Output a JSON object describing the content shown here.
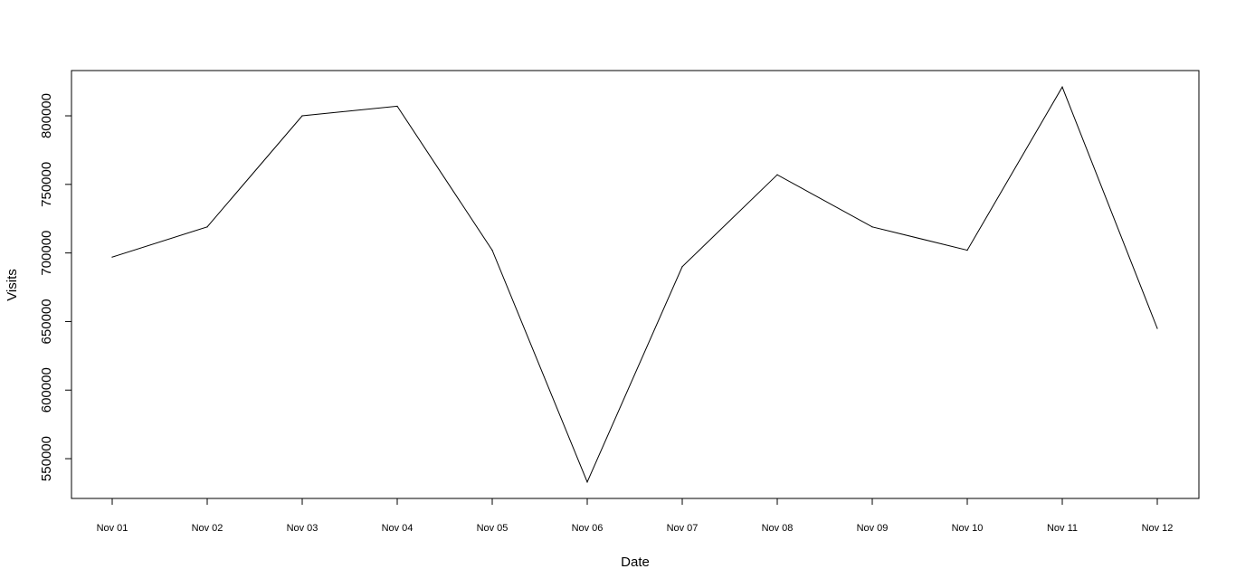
{
  "chart_data": {
    "type": "line",
    "title": "",
    "xlabel": "Date",
    "ylabel": "Visits",
    "x": [
      "Nov 01",
      "Nov 02",
      "Nov 03",
      "Nov 04",
      "Nov 05",
      "Nov 06",
      "Nov 07",
      "Nov 08",
      "Nov 09",
      "Nov 10",
      "Nov 11",
      "Nov 12"
    ],
    "series": [
      {
        "values": [
          697000,
          719000,
          800000,
          807000,
          702000,
          533000,
          690000,
          757000,
          719000,
          702000,
          821000,
          645000
        ]
      }
    ],
    "y_ticks": [
      "550000",
      "600000",
      "650000",
      "700000",
      "750000",
      "800000"
    ],
    "ylim": [
      521000,
      833000
    ],
    "grid": false,
    "legend": "none",
    "colors": {
      "line": "#000000",
      "axis": "#000000",
      "background": "#ffffff"
    }
  }
}
